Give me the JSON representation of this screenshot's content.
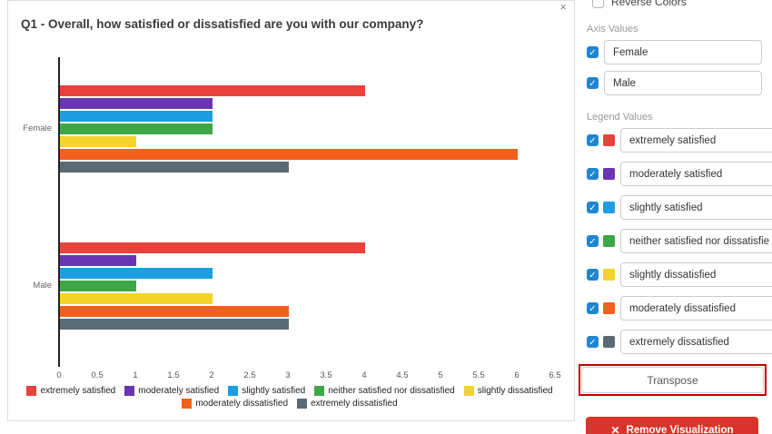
{
  "chart_panel": {
    "title": "Q1 - Overall, how satisfied or dissatisfied are you with our company?",
    "close_icon": "×"
  },
  "chart_data": {
    "type": "bar",
    "orientation": "horizontal",
    "title": "Q1 - Overall, how satisfied or dissatisfied are you with our company?",
    "categories": [
      "Female",
      "Male"
    ],
    "series": [
      {
        "name": "extremely satisfied",
        "color": "#e8423c",
        "values": [
          4,
          4
        ]
      },
      {
        "name": "moderately satisfied",
        "color": "#6a35b2",
        "values": [
          2,
          1
        ]
      },
      {
        "name": "slightly satisfied",
        "color": "#1d9ee0",
        "values": [
          2,
          2
        ]
      },
      {
        "name": "neither satisfied nor dissatisfied",
        "color": "#3fa748",
        "values": [
          2,
          1
        ]
      },
      {
        "name": "slightly dissatisfied",
        "color": "#f4d32b",
        "values": [
          1,
          2
        ]
      },
      {
        "name": "moderately dissatisfied",
        "color": "#f2601c",
        "values": [
          6,
          3
        ]
      },
      {
        "name": "extremely dissatisfied",
        "color": "#5a6b75",
        "values": [
          3,
          3
        ]
      }
    ],
    "xlim": [
      0,
      6.5
    ],
    "x_ticks": [
      0,
      0.5,
      1,
      1.5,
      2,
      2.5,
      3,
      3.5,
      4,
      4.5,
      5,
      5.5,
      6,
      6.5
    ],
    "legend_position": "bottom",
    "grid": false
  },
  "side_panel": {
    "reverse_colors": {
      "label": "Reverse Colors",
      "checked": false
    },
    "axis_values": {
      "label": "Axis Values",
      "items": [
        {
          "value": "Female",
          "checked": true
        },
        {
          "value": "Male",
          "checked": true
        }
      ]
    },
    "legend_values": {
      "label": "Legend Values",
      "items": [
        {
          "value": "extremely satisfied",
          "color": "#e8423c",
          "checked": true
        },
        {
          "value": "moderately satisfied",
          "color": "#6a35b2",
          "checked": true
        },
        {
          "value": "slightly satisfied",
          "color": "#1d9ee0",
          "checked": true
        },
        {
          "value": "neither satisfied nor dissatisfied",
          "color": "#3fa748",
          "checked": true
        },
        {
          "value": "slightly dissatisfied",
          "color": "#f4d32b",
          "checked": true
        },
        {
          "value": "moderately dissatisfied",
          "color": "#f2601c",
          "checked": true
        },
        {
          "value": "extremely dissatisfied",
          "color": "#5a6b75",
          "checked": true
        }
      ]
    },
    "transpose_button": "Transpose",
    "remove_button": {
      "icon": "✕",
      "label": "Remove Visualization"
    }
  },
  "colors": {
    "accent_blue": "#2086d0",
    "danger_red": "#d9342b",
    "annotation_red": "#c40000"
  }
}
